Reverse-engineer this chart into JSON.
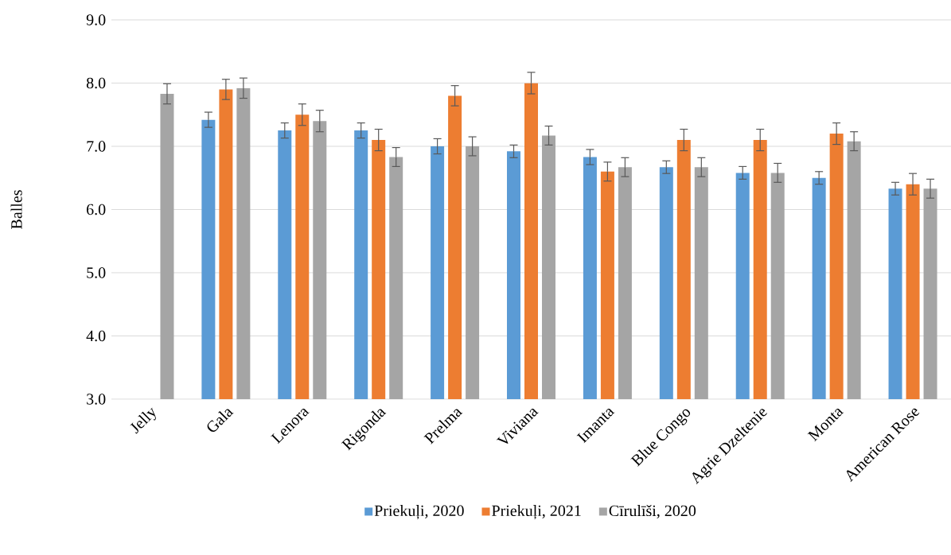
{
  "chart_data": {
    "type": "bar",
    "ylabel": "Balles",
    "categories": [
      "Jelly",
      "Gala",
      "Lenora",
      "Rigonda",
      "Prelma",
      "Viviana",
      "Imanta",
      "Blue Congo",
      "Agrie Dzeltenie",
      "Monta",
      "American Rose"
    ],
    "series": [
      {
        "name": "Priekuļi, 2020",
        "color": "#5b9bd5",
        "values": [
          null,
          7.42,
          7.25,
          7.25,
          7.0,
          6.92,
          6.83,
          6.67,
          6.58,
          6.5,
          6.33
        ],
        "errors": [
          null,
          0.12,
          0.12,
          0.12,
          0.12,
          0.1,
          0.12,
          0.1,
          0.1,
          0.1,
          0.1
        ]
      },
      {
        "name": "Priekuļi, 2021",
        "color": "#ed7d31",
        "values": [
          null,
          7.9,
          7.5,
          7.1,
          7.8,
          8.0,
          6.6,
          7.1,
          7.1,
          7.2,
          6.4
        ],
        "errors": [
          null,
          0.16,
          0.17,
          0.17,
          0.16,
          0.17,
          0.15,
          0.17,
          0.17,
          0.17,
          0.17
        ]
      },
      {
        "name": "Cīrulīši, 2020",
        "color": "#a5a5a5",
        "values": [
          7.83,
          7.92,
          7.4,
          6.83,
          7.0,
          7.17,
          6.67,
          6.67,
          6.58,
          7.08,
          6.33
        ],
        "errors": [
          0.16,
          0.16,
          0.17,
          0.15,
          0.15,
          0.15,
          0.15,
          0.15,
          0.15,
          0.15,
          0.15
        ]
      }
    ],
    "ylim": [
      3,
      9
    ],
    "yticks": [
      {
        "value": 3,
        "label": "3.0"
      },
      {
        "value": 4,
        "label": "4.0"
      },
      {
        "value": 5,
        "label": "5.0"
      },
      {
        "value": 6,
        "label": "6.0"
      },
      {
        "value": 7,
        "label": "7.0"
      },
      {
        "value": 8,
        "label": "8.0"
      },
      {
        "value": 9,
        "label": "9.0"
      }
    ],
    "grid": "y",
    "legend": "bottom"
  }
}
